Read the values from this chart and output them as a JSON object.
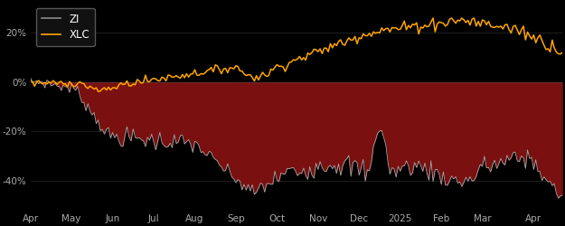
{
  "background_color": "#000000",
  "plot_bg_color": "#000000",
  "fill_color": "#7a1010",
  "zi_line_color": "#aaaaaa",
  "xlc_line_color": "#FFA500",
  "zi_legend_color": "#888888",
  "legend_bg": "#111111",
  "legend_edge": "#555555",
  "tick_color": "#aaaaaa",
  "x_labels": [
    "Apr",
    "May",
    "Jun",
    "Jul",
    "Aug",
    "Sep",
    "Oct",
    "Nov",
    "Dec",
    "2025",
    "Feb",
    "Mar",
    "Apr"
  ],
  "ylim": [
    -52,
    32
  ],
  "yticks": [
    -40,
    -20,
    0,
    20
  ],
  "ytick_labels": [
    "-40%",
    "-20%",
    "0%",
    "20%"
  ],
  "n_points": 260
}
